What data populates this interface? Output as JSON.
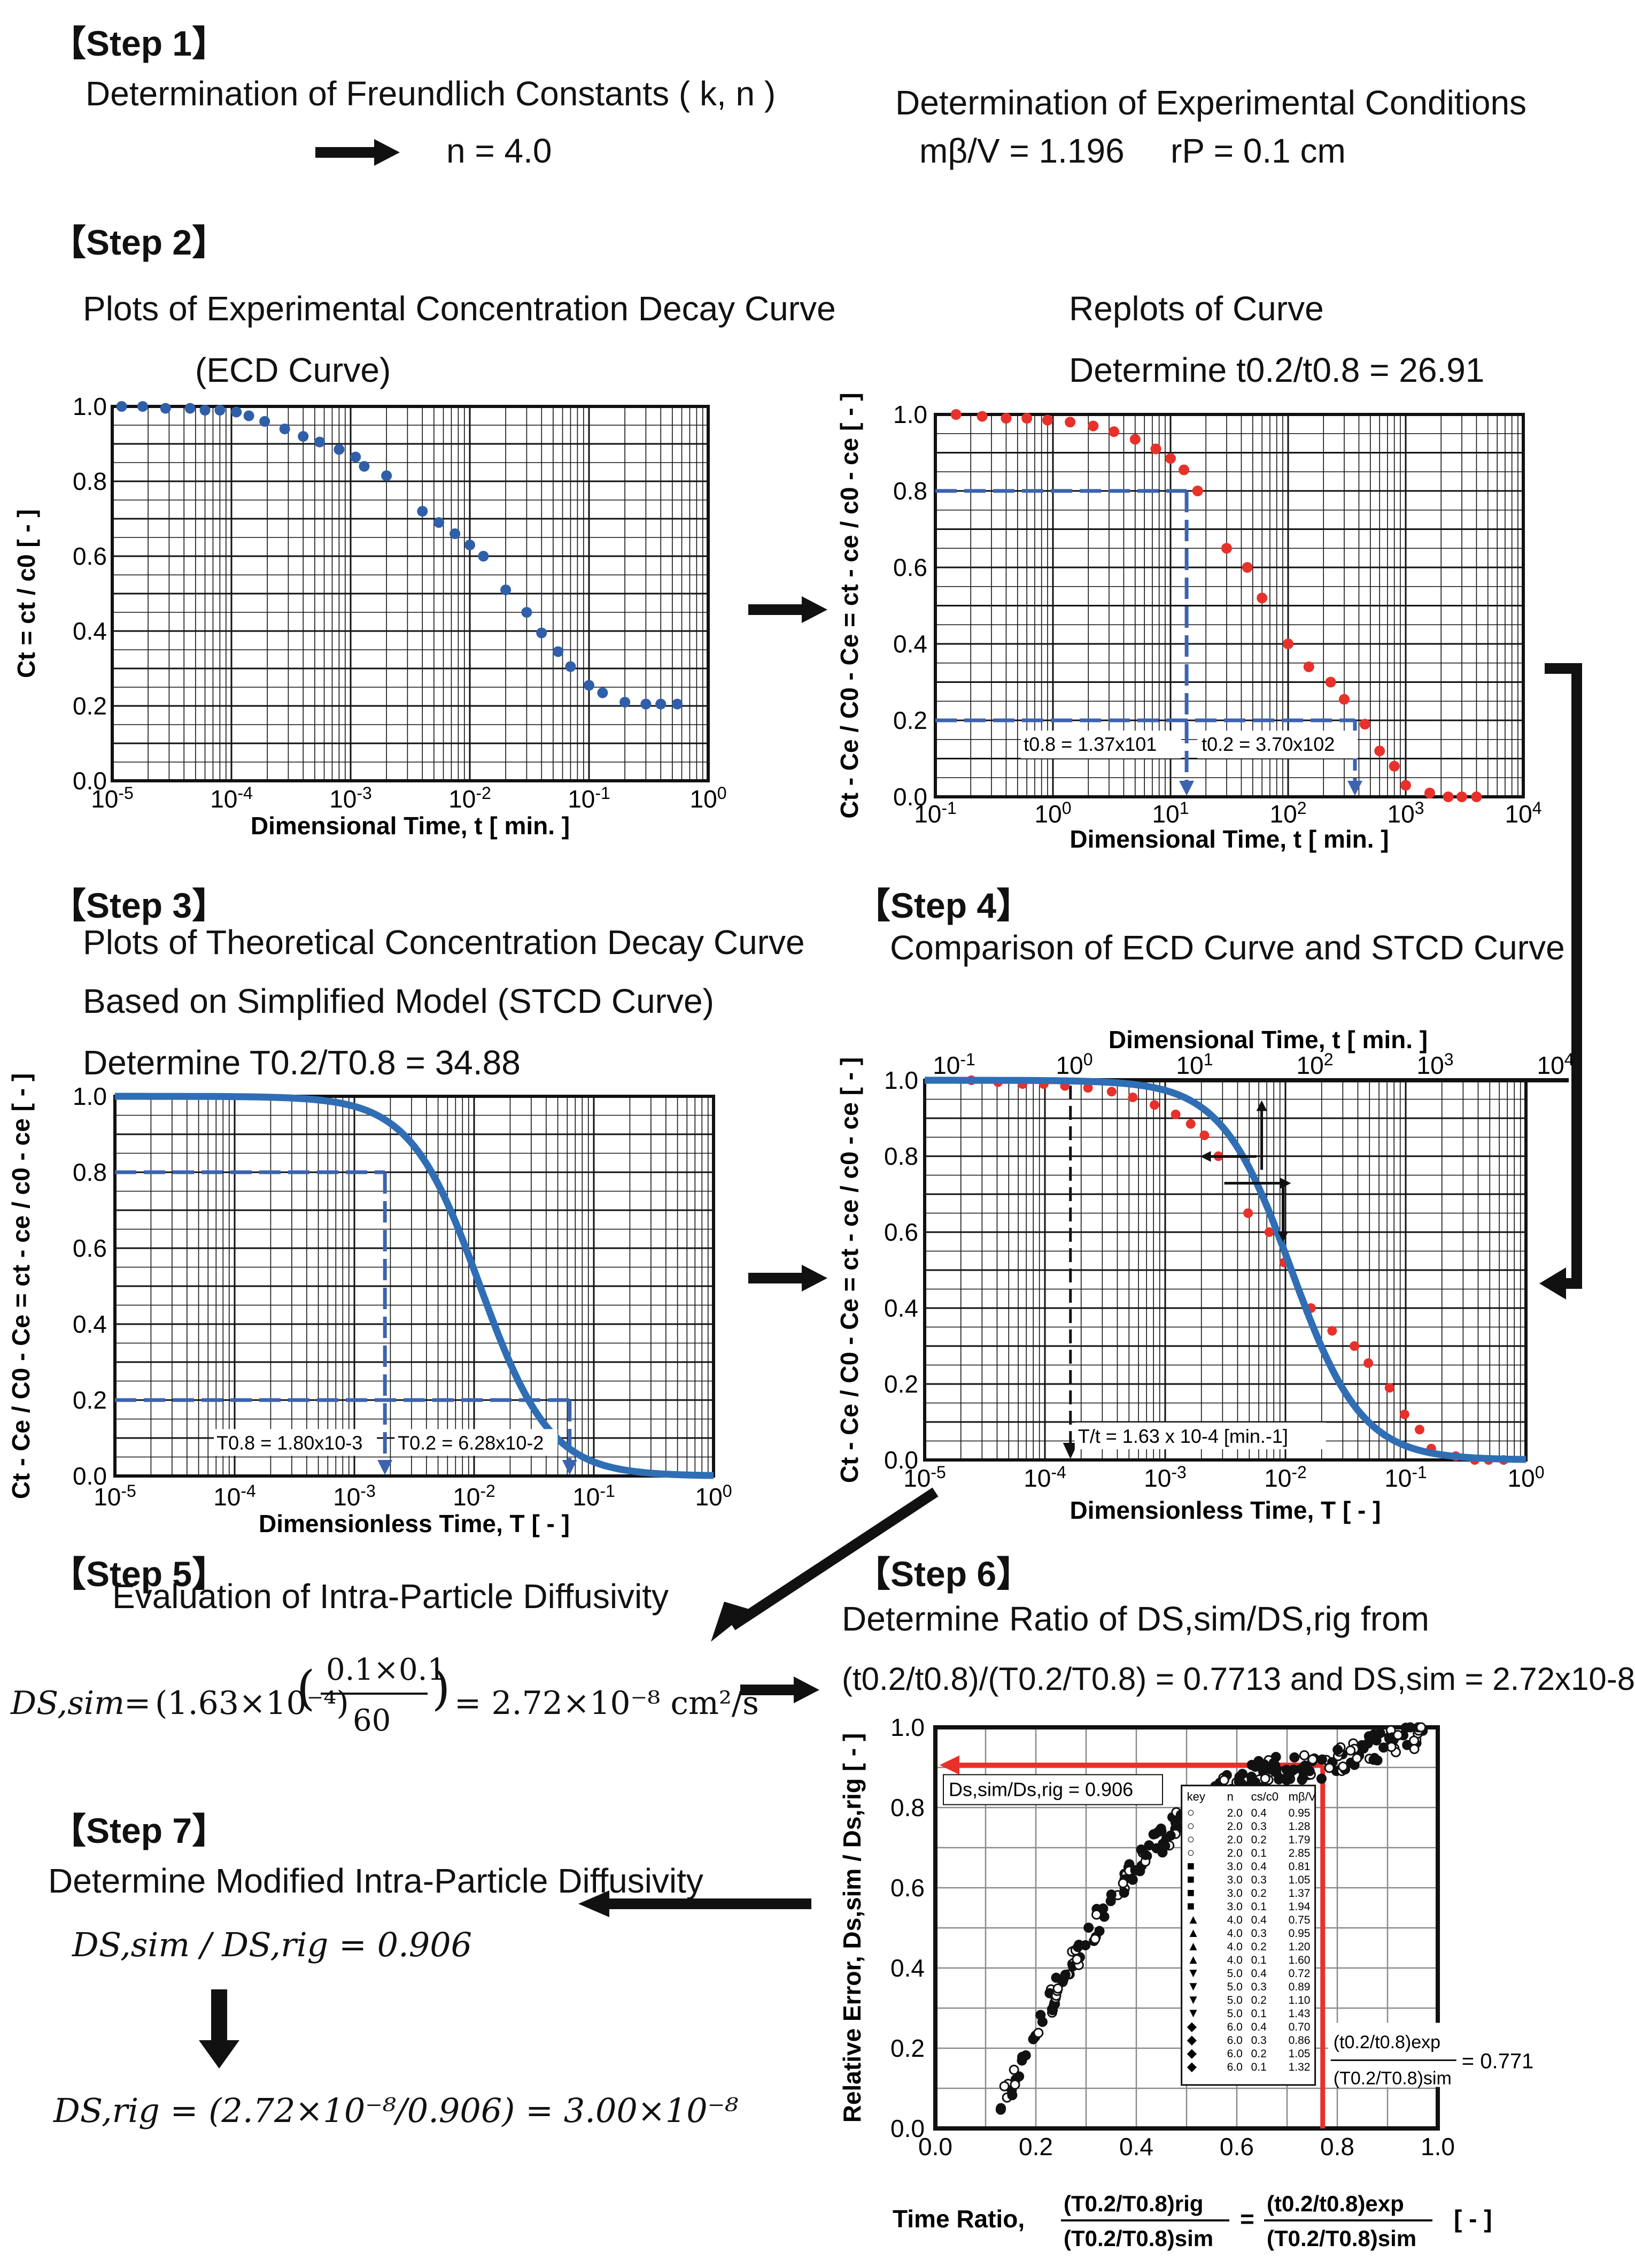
{
  "step1": {
    "label": "【Step 1】",
    "heading": "Determination of Freundlich Constants ( k, n )",
    "result": "n = 4.0",
    "exp_heading": "Determination of Experimental Conditions",
    "exp_mbv": "mβ/V = 1.196",
    "exp_rp": "rP = 0.1 cm"
  },
  "step2": {
    "label": "【Step 2】",
    "heading_line1": "Plots of Experimental Concentration Decay Curve",
    "heading_line2": "(ECD Curve)",
    "replot_heading": "Replots of Curve",
    "replot_determine": "Determine    t0.2/t0.8 = 26.91"
  },
  "step3": {
    "label": "【Step 3】",
    "heading_line1": "Plots of Theoretical Concentration Decay Curve",
    "heading_line2": "Based on Simplified Model  (STCD Curve)",
    "determine": "Determine    T0.2/T0.8 = 34.88"
  },
  "step4": {
    "label": "【Step 4】",
    "heading": "Comparison of ECD Curve  and STCD Curve"
  },
  "step5": {
    "label": "【Step 5】",
    "heading": "Evaluation of Intra-Particle Diffusivity",
    "eq_lhs": "DS,sim",
    "eq_factor1": "(1.63×10⁻⁴)",
    "eq_num": "0.1×0.1",
    "eq_den": "60",
    "eq_result": "= 2.72×10⁻⁸  cm²/s"
  },
  "step6": {
    "label": "【Step 6】",
    "heading_line1": "Determine Ratio of DS,sim/DS,rig from",
    "heading_line2": "(t0.2/t0.8)/(T0.2/T0.8) = 0.7713 and DS,sim = 2.72x10-8"
  },
  "step7": {
    "label": "【Step 7】",
    "heading": "Determine Modified Intra-Particle Diffusivity",
    "ratio_eq": "DS,sim / DS,rig = 0.906",
    "final_eq": "DS,rig = (2.72×10⁻⁸/0.906) = 3.00×10⁻⁸"
  },
  "colors": {
    "blue_points": "#2f5fa8",
    "red_points": "#e8312a",
    "curve": "#2f6eb5",
    "dash": "#3c63b0",
    "red_line": "#e8312a"
  },
  "chart_data": [
    {
      "id": "ecd",
      "type": "scatter",
      "xscale": "log",
      "xlim": [
        1e-05,
        1
      ],
      "ylim": [
        0,
        1
      ],
      "xlabel": "Dimensional Time, t  [ min. ]",
      "ylabel": "Ct = ct / c0 [ - ]",
      "xticks": [
        "10-5",
        "10-4",
        "10-3",
        "10-2",
        "10-1",
        "100"
      ],
      "yticks": [
        "0.0",
        "0.2",
        "0.4",
        "0.6",
        "0.8",
        "1.0"
      ],
      "points": [
        [
          1.2e-05,
          1.0
        ],
        [
          1.8e-05,
          1.0
        ],
        [
          2.8e-05,
          0.995
        ],
        [
          4.5e-05,
          0.995
        ],
        [
          6e-05,
          0.99
        ],
        [
          8e-05,
          0.99
        ],
        [
          0.00011,
          0.985
        ],
        [
          0.00014,
          0.975
        ],
        [
          0.00019,
          0.96
        ],
        [
          0.00028,
          0.94
        ],
        [
          0.0004,
          0.92
        ],
        [
          0.00055,
          0.905
        ],
        [
          0.0008,
          0.885
        ],
        [
          0.0011,
          0.865
        ],
        [
          0.0013,
          0.84
        ],
        [
          0.002,
          0.815
        ],
        [
          0.004,
          0.72
        ],
        [
          0.0055,
          0.69
        ],
        [
          0.0075,
          0.66
        ],
        [
          0.01,
          0.63
        ],
        [
          0.013,
          0.6
        ],
        [
          0.02,
          0.51
        ],
        [
          0.03,
          0.45
        ],
        [
          0.04,
          0.395
        ],
        [
          0.055,
          0.345
        ],
        [
          0.07,
          0.305
        ],
        [
          0.1,
          0.255
        ],
        [
          0.13,
          0.235
        ],
        [
          0.2,
          0.21
        ],
        [
          0.3,
          0.205
        ],
        [
          0.4,
          0.205
        ],
        [
          0.55,
          0.205
        ]
      ]
    },
    {
      "id": "replot",
      "type": "scatter",
      "xscale": "log",
      "xlim": [
        0.1,
        10000
      ],
      "ylim": [
        0,
        1
      ],
      "xlabel": "Dimensional Time, t  [ min. ]",
      "ylabel": "Ct - Ce / C0 - Ce = ct - ce / c0 - ce [ - ]",
      "xticks": [
        "10-1",
        "100",
        "101",
        "102",
        "103",
        "104"
      ],
      "yticks": [
        "0.0",
        "0.2",
        "0.4",
        "0.6",
        "0.8",
        "1.0"
      ],
      "points": [
        [
          0.15,
          1.0
        ],
        [
          0.25,
          0.995
        ],
        [
          0.4,
          0.99
        ],
        [
          0.6,
          0.99
        ],
        [
          0.9,
          0.985
        ],
        [
          1.4,
          0.98
        ],
        [
          2.2,
          0.97
        ],
        [
          3.3,
          0.955
        ],
        [
          5,
          0.935
        ],
        [
          7.5,
          0.91
        ],
        [
          10,
          0.885
        ],
        [
          13,
          0.855
        ],
        [
          17,
          0.8
        ],
        [
          30,
          0.65
        ],
        [
          45,
          0.6
        ],
        [
          60,
          0.52
        ],
        [
          100,
          0.4
        ],
        [
          150,
          0.34
        ],
        [
          230,
          0.3
        ],
        [
          300,
          0.255
        ],
        [
          450,
          0.19
        ],
        [
          600,
          0.12
        ],
        [
          800,
          0.08
        ],
        [
          1000,
          0.03
        ],
        [
          1600,
          0.01
        ],
        [
          2300,
          0.0
        ],
        [
          3000,
          0.0
        ],
        [
          4000,
          0.0
        ]
      ],
      "markers": {
        "t08": 13.7,
        "t02": 370
      },
      "annotation_t08": "t0.8 = 1.37x101",
      "annotation_t02": "t0.2 = 3.70x102"
    },
    {
      "id": "stcd",
      "type": "line",
      "xscale": "log",
      "xlim": [
        1e-05,
        1
      ],
      "ylim": [
        0,
        1
      ],
      "xlabel": "Dimensionless Time, T  [ - ]",
      "ylabel": "Ct - Ce / C0 - Ce = ct - ce / c0 - ce [ - ]",
      "xticks": [
        "10-5",
        "10-4",
        "10-3",
        "10-2",
        "10-1",
        "100"
      ],
      "yticks": [
        "0.0",
        "0.2",
        "0.4",
        "0.6",
        "0.8",
        "1.0"
      ],
      "markers": {
        "T08": 0.0018,
        "T02": 0.0628
      },
      "annotation_T08": "T0.8 = 1.80x10-3",
      "annotation_T02": "T0.2 = 6.28x10-2"
    },
    {
      "id": "comparison",
      "type": "line+scatter",
      "xscale": "log",
      "xlim": [
        1e-05,
        1
      ],
      "ylim": [
        0,
        1
      ],
      "xlabel": "Dimensionless Time, T  [ - ]",
      "top_xlabel": "Dimensional Time, t  [ min. ]",
      "ylabel": "Ct - Ce / C0 - Ce = ct - ce / c0 - ce [ - ]",
      "xticks": [
        "10-5",
        "10-4",
        "10-3",
        "10-2",
        "10-1",
        "100"
      ],
      "top_xticks": [
        "10-1",
        "100",
        "101",
        "102",
        "103",
        "104"
      ],
      "yticks": [
        "0.0",
        "0.2",
        "0.4",
        "0.6",
        "0.8",
        "1.0"
      ],
      "annotation": "T/t = 1.63 x 10-4 [min.-1]",
      "marker_T": 0.000163
    },
    {
      "id": "relative-error",
      "type": "scatter",
      "xlim": [
        0,
        1
      ],
      "ylim": [
        0,
        1
      ],
      "xlabel": "Time Ratio, (T0.2/T0.8)rig / (T0.2/T0.8)sim = (t0.2/t0.8)exp / (T0.2/T0.8)sim  [ - ]",
      "ylabel": "Relative Error, Ds,sim / Ds,rig [ - ]",
      "xticks": [
        "0.0",
        "0.2",
        "0.4",
        "0.6",
        "0.8",
        "1.0"
      ],
      "yticks": [
        "0.0",
        "0.2",
        "0.4",
        "0.6",
        "0.8",
        "1.0"
      ],
      "read_x": 0.771,
      "read_y": 0.906,
      "annotation_y": "Ds,sim/Ds,rig = 0.906",
      "annotation_x": "= 0.771",
      "legend": {
        "header": [
          "key",
          "n",
          "cs/c0",
          "mβ/V"
        ],
        "rows": [
          [
            "○",
            "2.0",
            "0.4",
            "0.95"
          ],
          [
            "○",
            "2.0",
            "0.3",
            "1.28"
          ],
          [
            "○",
            "2.0",
            "0.2",
            "1.79"
          ],
          [
            "○",
            "2.0",
            "0.1",
            "2.85"
          ],
          [
            "■",
            "3.0",
            "0.4",
            "0.81"
          ],
          [
            "■",
            "3.0",
            "0.3",
            "1.05"
          ],
          [
            "■",
            "3.0",
            "0.2",
            "1.37"
          ],
          [
            "■",
            "3.0",
            "0.1",
            "1.94"
          ],
          [
            "▲",
            "4.0",
            "0.4",
            "0.75"
          ],
          [
            "▲",
            "4.0",
            "0.3",
            "0.95"
          ],
          [
            "▲",
            "4.0",
            "0.2",
            "1.20"
          ],
          [
            "▲",
            "4.0",
            "0.1",
            "1.60"
          ],
          [
            "▼",
            "5.0",
            "0.4",
            "0.72"
          ],
          [
            "▼",
            "5.0",
            "0.3",
            "0.89"
          ],
          [
            "▼",
            "5.0",
            "0.2",
            "1.10"
          ],
          [
            "▼",
            "5.0",
            "0.1",
            "1.43"
          ],
          [
            "◆",
            "6.0",
            "0.4",
            "0.70"
          ],
          [
            "◆",
            "6.0",
            "0.3",
            "0.86"
          ],
          [
            "◆",
            "6.0",
            "0.2",
            "1.05"
          ],
          [
            "◆",
            "6.0",
            "0.1",
            "1.32"
          ]
        ]
      }
    }
  ]
}
